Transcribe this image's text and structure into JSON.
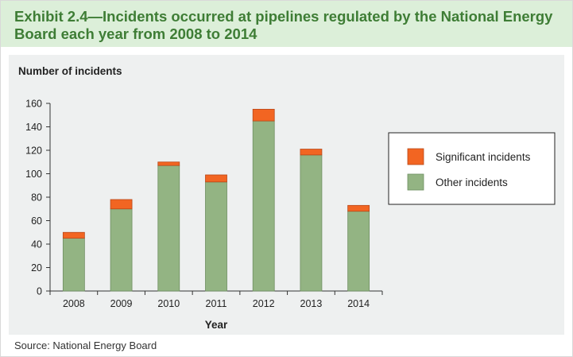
{
  "exhibit": {
    "title": "Exhibit 2.4—Incidents occurred at pipelines regulated by the National Energy Board each year from 2008 to 2014",
    "source": "Source: National Energy Board"
  },
  "colors": {
    "title_background": "#dcefd9",
    "title_text": "#3e7d35",
    "panel_background": "#eef0f0",
    "significant": "#f26522",
    "other": "#93b483"
  },
  "chart_data": {
    "type": "bar",
    "stacked": true,
    "ylabel": "Number of incidents",
    "xlabel": "Year",
    "ylim": [
      0,
      160
    ],
    "yticks": [
      0,
      20,
      40,
      60,
      80,
      100,
      120,
      140,
      160
    ],
    "categories": [
      "2008",
      "2009",
      "2010",
      "2011",
      "2012",
      "2013",
      "2014"
    ],
    "series": [
      {
        "name": "Other incidents",
        "values": [
          45,
          70,
          107,
          93,
          145,
          116,
          68
        ]
      },
      {
        "name": "Significant incidents",
        "values": [
          5,
          8,
          3,
          6,
          10,
          5,
          5
        ]
      }
    ],
    "legend": {
      "position": "right",
      "entries": [
        "Significant incidents",
        "Other incidents"
      ]
    },
    "grid": false
  }
}
